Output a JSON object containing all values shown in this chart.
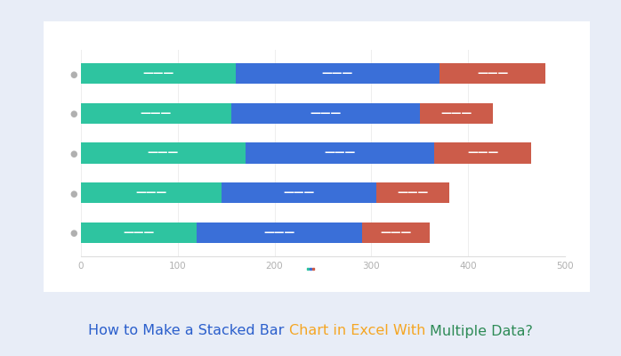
{
  "series1": [
    120,
    145,
    170,
    155,
    160
  ],
  "series2": [
    170,
    160,
    195,
    195,
    210
  ],
  "series3": [
    70,
    75,
    100,
    75,
    110
  ],
  "color1": "#2ec4a0",
  "color2": "#3a6fd8",
  "color3": "#cc5c4a",
  "bg_outer": "#e8edf7",
  "bg_inner": "#ffffff",
  "bar_height": 0.52,
  "xlim_max": 500,
  "xtick_vals": [
    0,
    100,
    200,
    300,
    400,
    500
  ],
  "label_text": "―――――",
  "label_fontsize": 8.5,
  "title_parts": [
    {
      "text": "How to Make a Stacked Bar ",
      "color": "#2b5fcc"
    },
    {
      "text": "Chart in Excel With ",
      "color": "#f5a623"
    },
    {
      "text": "Multiple Data?",
      "color": "#2e8b57"
    }
  ],
  "title_fontsize": 11.5
}
